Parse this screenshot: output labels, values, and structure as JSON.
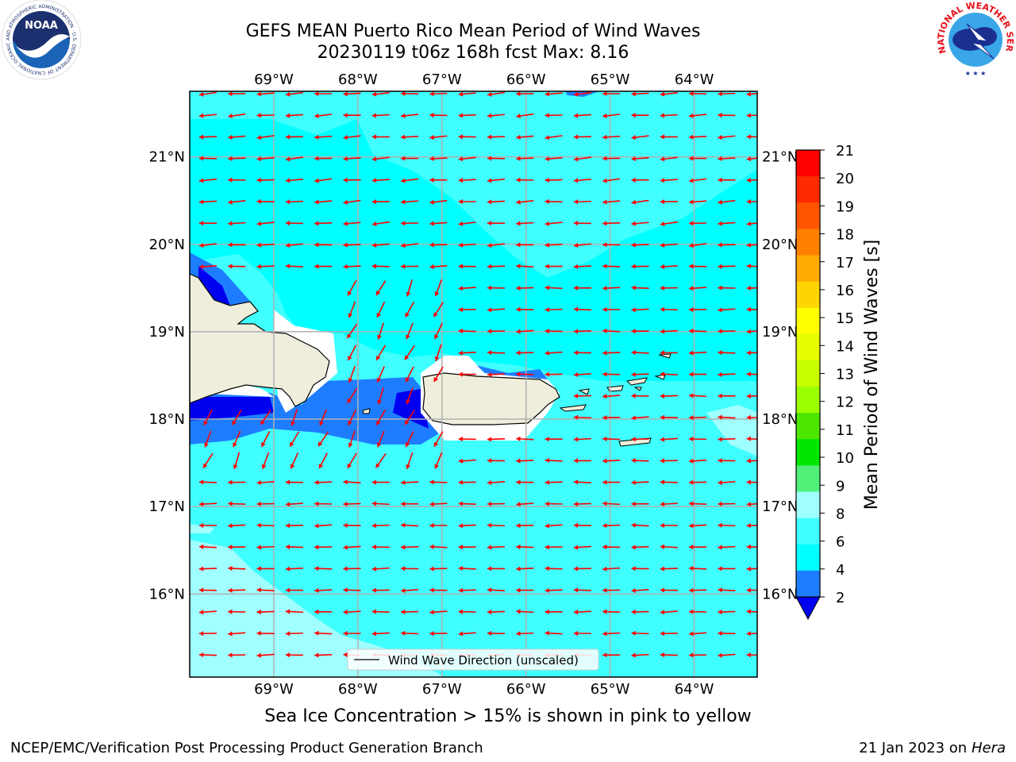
{
  "header": {
    "title_line1": "GEFS MEAN Puerto Rico Mean Period of Wind Waves",
    "title_line2": "20230119 t06z 168h fcst   Max: 8.16"
  },
  "map": {
    "lon_labels": [
      "69°W",
      "68°W",
      "67°W",
      "66°W",
      "65°W",
      "64°W"
    ],
    "lon_values": [
      -69,
      -68,
      -67,
      -66,
      -65,
      -64
    ],
    "lat_labels": [
      "21°N",
      "20°N",
      "19°N",
      "18°N",
      "17°N",
      "16°N"
    ],
    "lat_values": [
      21,
      20,
      19,
      18,
      17,
      16
    ],
    "lon_range": [
      -70,
      -63.25
    ],
    "lat_range": [
      15.05,
      21.75
    ],
    "legend_label": "Wind Wave Direction (unscaled)",
    "arrow_color": "#ff0000",
    "land_color": "#efeedc",
    "ocean_colors": {
      "4-6": "#00ffff",
      "6-8": "#40ffff",
      "8-9": "#a0ffff",
      "2-4": "#1e7dff",
      "0-2": "#0000f0"
    }
  },
  "colorbar": {
    "label": "Mean Period of Wind Waves [s]",
    "ticks": [
      "21",
      "20",
      "19",
      "18",
      "17",
      "16",
      "15",
      "14",
      "13",
      "12",
      "11",
      "10",
      "9",
      "8",
      "6",
      "4",
      "2"
    ],
    "colors": [
      "#ff0000",
      "#ff2a00",
      "#ff5500",
      "#ff8000",
      "#ffaa00",
      "#ffd400",
      "#ffff00",
      "#e6ff00",
      "#c8ff00",
      "#9bff00",
      "#4de600",
      "#00e600",
      "#50f078",
      "#a0ffff",
      "#40ffff",
      "#00ffff",
      "#1e7dff"
    ],
    "under_color": "#0000f0"
  },
  "caption": "Sea Ice Concentration > 15% is shown in pink to yellow",
  "footer": {
    "left": "NCEP/EMC/Verification Post Processing Product Generation Branch",
    "right_prefix": "21 Jan 2023 on ",
    "right_italic": "Hera"
  },
  "logos": {
    "noaa_text": "NOAA",
    "noaa_ring": "NATIONAL OCEANIC AND ATMOSPHERIC ADMINISTRATION · U.S. DEPARTMENT OF COMMERCE",
    "nws_ring": "NATIONAL WEATHER SERVICE"
  }
}
